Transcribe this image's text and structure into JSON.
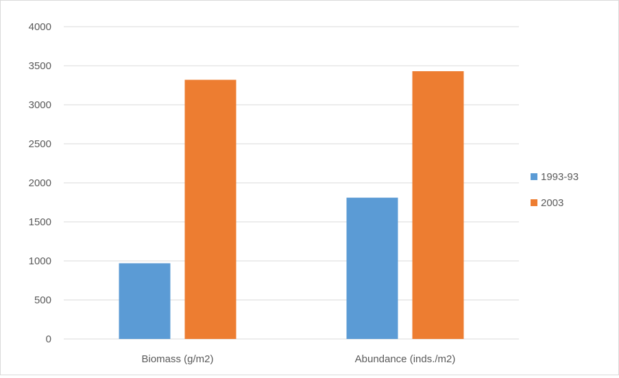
{
  "colors": {
    "series_1": "#5b9bd5",
    "series_2": "#ed7d31",
    "gridline": "#d9d9d9",
    "axis_text": "#595959"
  },
  "chart_data": {
    "type": "bar",
    "categories": [
      "Biomass (g/m2)",
      "Abundance (inds./m2)"
    ],
    "series": [
      {
        "name": "1993-93",
        "values": [
          970,
          1810
        ]
      },
      {
        "name": "2003",
        "values": [
          3320,
          3430
        ]
      }
    ],
    "title": "",
    "xlabel": "",
    "ylabel": "",
    "ylim": [
      0,
      4000
    ],
    "yticks": [
      0,
      500,
      1000,
      1500,
      2000,
      2500,
      3000,
      3500,
      4000
    ],
    "grid": true,
    "legend_position": "right"
  }
}
